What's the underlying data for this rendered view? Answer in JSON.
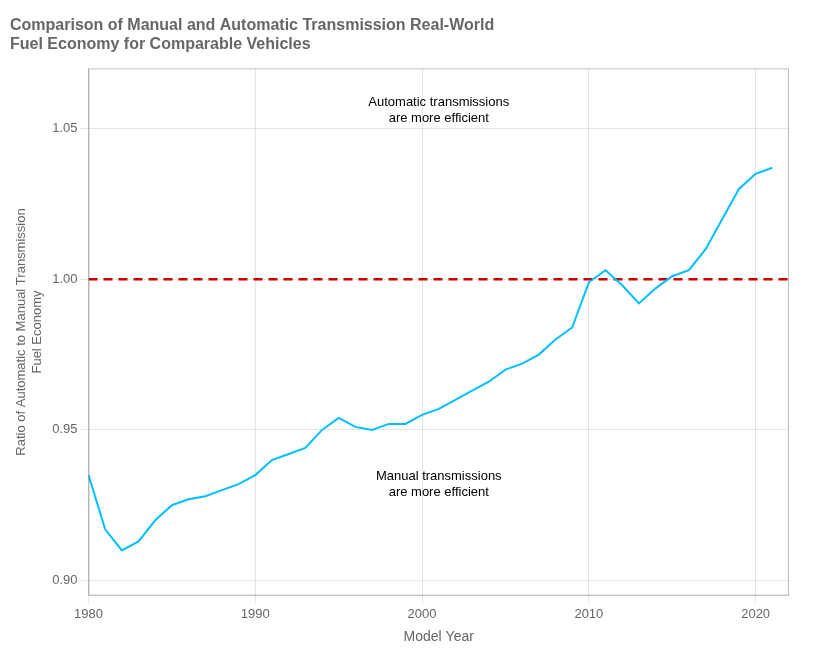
{
  "chart_data": {
    "type": "line",
    "title": "Comparison of Manual and Automatic Transmission Real-World\nFuel Economy for Comparable Vehicles",
    "x_label": "Model Year",
    "y_label": "Ratio of Automatic to Manual Transmission\nFuel Economy",
    "color": "#00BFFF",
    "x": [
      1980,
      1981,
      1982,
      1983,
      1984,
      1985,
      1986,
      1987,
      1988,
      1989,
      1990,
      1991,
      1992,
      1993,
      1994,
      1995,
      1996,
      1997,
      1998,
      1999,
      2000,
      2001,
      2002,
      2003,
      2004,
      2005,
      2006,
      2007,
      2008,
      2009,
      2010,
      2011,
      2012,
      2013,
      2014,
      2015,
      2016,
      2017,
      2018,
      2019,
      2020,
      2021
    ],
    "values": [
      0.935,
      0.917,
      0.91,
      0.913,
      0.92,
      0.925,
      0.927,
      0.928,
      0.93,
      0.932,
      0.935,
      0.94,
      0.942,
      0.944,
      0.95,
      0.954,
      0.951,
      0.95,
      0.952,
      0.952,
      0.955,
      0.957,
      0.96,
      0.963,
      0.966,
      0.97,
      0.972,
      0.975,
      0.98,
      0.984,
      0.999,
      1.003,
      0.998,
      0.992,
      0.997,
      1.001,
      1.003,
      1.01,
      1.02,
      1.03,
      1.035,
      1.037
    ],
    "reference_line": {
      "y": 1.0,
      "color": "#CC0000",
      "line_style": "dashed"
    },
    "annotations": [
      "Automatic transmissions\nare more efficient",
      "Manual transmissions\nare more efficient"
    ],
    "xlim": [
      1980,
      2022
    ],
    "xticks": [
      1980,
      1990,
      2000,
      2010,
      2020
    ],
    "ylim": [
      0.895,
      1.07
    ],
    "yticks": [
      {
        "value": 0.9,
        "label": "0.90"
      },
      0.95,
      {
        "value": 1.0,
        "label": "1.00"
      },
      1.05
    ],
    "grid": true
  }
}
